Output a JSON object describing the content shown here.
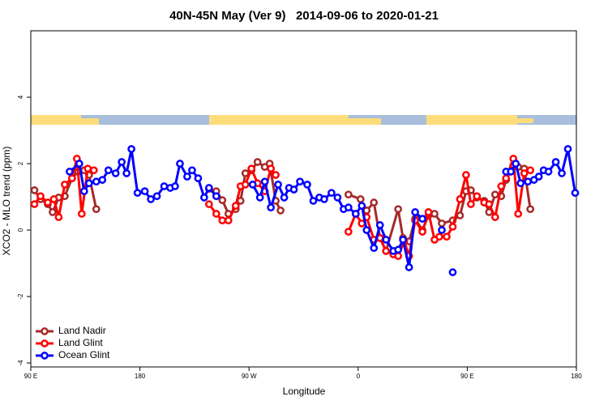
{
  "chart_data": {
    "type": "line",
    "title": "40N-45N May (Ver 9)   2014-09-06 to 2020-01-21",
    "x_label": "Longitude",
    "y_label": "XCO2 - MLO trend (ppm)",
    "xlim": [
      90,
      540
    ],
    "ylim": [
      -4.12,
      6
    ],
    "xticks": [
      {
        "value": 90,
        "label": "90 E"
      },
      {
        "value": 180,
        "label": "180"
      },
      {
        "value": 270,
        "label": "90 W"
      },
      {
        "value": 360,
        "label": "0"
      },
      {
        "value": 450,
        "label": "90 E"
      },
      {
        "value": 540,
        "label": "180"
      }
    ],
    "yticks": [
      -4,
      -2,
      0,
      2,
      4
    ],
    "legend": "bottomleft",
    "series": [
      {
        "name": "Land Nadir",
        "color": "#a52a2a",
        "x": [
          93,
          98,
          104,
          108,
          113,
          118,
          124,
          129,
          134,
          138,
          144,
          190,
          237,
          243,
          248,
          253,
          259,
          263,
          267,
          272,
          277,
          283,
          287,
          292,
          296,
          324,
          352,
          362,
          367,
          373,
          378,
          383,
          393,
          397,
          402,
          407,
          413,
          418,
          423,
          429,
          438,
          444,
          449,
          453,
          458,
          464,
          468,
          473,
          478,
          482,
          488,
          492,
          497,
          502
        ],
        "values": [
          1.2,
          0.93,
          0.78,
          0.54,
          0.98,
          1.02,
          1.56,
          1.76,
          1.8,
          1.66,
          0.63,
          null,
          1.24,
          1.17,
          0.9,
          0.49,
          0.63,
          0.88,
          1.71,
          1.8,
          2.05,
          1.9,
          2.0,
          0.88,
          0.59,
          null,
          1.07,
          0.93,
          0.59,
          0.83,
          -0.24,
          -0.63,
          0.63,
          -0.24,
          -0.34,
          0.34,
          0.0,
          0.44,
          0.49,
          0.2,
          0.29,
          0.44,
          1.17,
          1.2,
          0.98,
          0.88,
          0.54,
          1.07,
          1.02,
          1.51,
          1.95,
          1.9,
          1.85,
          0.63
        ]
      },
      {
        "name": "Land Glint",
        "color": "#ff0000",
        "x": [
          93,
          98,
          104,
          109,
          113,
          118,
          124,
          128,
          132,
          137,
          142,
          190,
          237,
          243,
          248,
          253,
          259,
          263,
          267,
          272,
          277,
          283,
          288,
          292,
          324,
          352,
          358,
          363,
          367,
          373,
          378,
          383,
          389,
          393,
          398,
          402,
          407,
          413,
          418,
          423,
          427,
          433,
          438,
          444,
          449,
          453,
          458,
          464,
          468,
          473,
          478,
          482,
          488,
          492,
          497,
          502
        ],
        "values": [
          0.78,
          1.02,
          0.83,
          0.93,
          0.39,
          1.37,
          1.56,
          2.15,
          0.49,
          1.85,
          1.8,
          null,
          0.78,
          0.49,
          0.29,
          0.29,
          0.73,
          1.32,
          1.37,
          1.85,
          1.41,
          1.17,
          1.85,
          1.66,
          null,
          -0.05,
          0.49,
          0.2,
          0.39,
          -0.29,
          -0.24,
          -0.63,
          -0.73,
          -0.78,
          -0.34,
          -0.78,
          0.29,
          -0.05,
          0.54,
          -0.29,
          -0.2,
          -0.2,
          0.1,
          0.93,
          1.66,
          0.78,
          1.02,
          0.83,
          0.78,
          0.39,
          1.32,
          1.56,
          2.15,
          0.49,
          1.71,
          1.8
        ]
      },
      {
        "name": "Ocean Glint",
        "color": "#0000ff",
        "x": [
          122,
          130,
          134,
          138,
          144,
          149,
          154,
          160,
          165,
          169,
          173,
          178,
          184,
          189,
          194,
          200,
          205,
          209,
          213,
          219,
          223,
          228,
          233,
          237,
          243,
          258,
          273,
          279,
          283,
          288,
          294,
          299,
          303,
          307,
          312,
          318,
          323,
          328,
          332,
          338,
          343,
          348,
          352,
          358,
          363,
          367,
          373,
          378,
          383,
          389,
          393,
          397,
          402,
          407,
          413,
          421,
          429,
          433,
          438,
          460,
          482,
          486,
          490,
          494,
          500,
          505,
          509,
          513,
          517,
          523,
          528,
          533,
          539
        ],
        "values": [
          1.76,
          2.0,
          1.17,
          1.41,
          1.46,
          1.51,
          1.8,
          1.71,
          2.05,
          1.71,
          2.44,
          1.12,
          1.17,
          0.93,
          1.02,
          1.32,
          1.27,
          1.32,
          2.0,
          1.61,
          1.8,
          1.56,
          0.98,
          1.27,
          1.02,
          null,
          1.37,
          0.98,
          1.46,
          0.68,
          1.37,
          0.98,
          1.27,
          1.22,
          1.46,
          1.37,
          0.88,
          0.98,
          0.93,
          1.12,
          0.98,
          0.63,
          0.68,
          0.49,
          0.73,
          0.0,
          -0.54,
          0.15,
          -0.29,
          -0.63,
          -0.59,
          -0.29,
          -1.12,
          0.54,
          0.34,
          null,
          0.0,
          null,
          -1.27,
          null,
          1.76,
          1.76,
          2.0,
          1.41,
          1.46,
          1.51,
          1.61,
          1.8,
          1.76,
          2.05,
          1.71,
          2.44,
          1.12
        ]
      }
    ]
  }
}
